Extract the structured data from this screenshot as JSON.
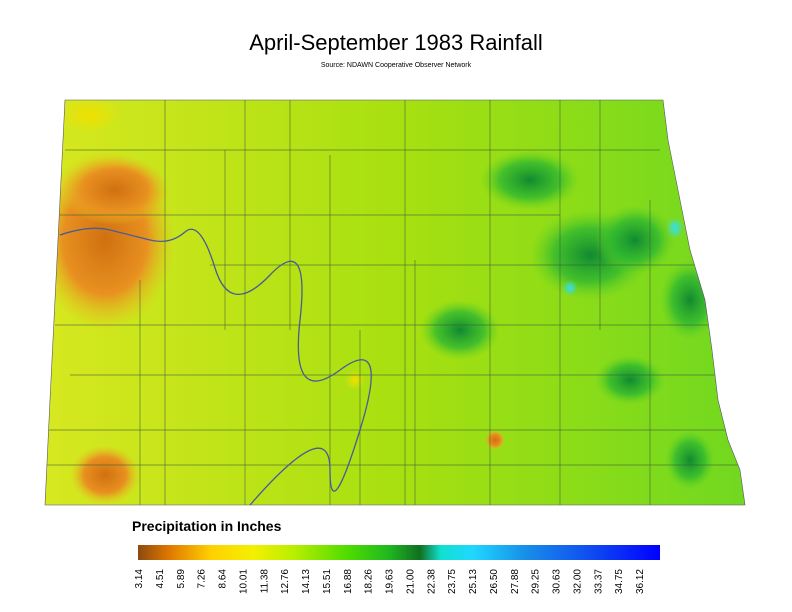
{
  "header": {
    "title": "April-September 1983 Rainfall",
    "source": "Source: NDAWN Cooperative Observer Network"
  },
  "legend": {
    "title": "Precipitation in Inches",
    "labels": [
      "3.14",
      "4.51",
      "5.89",
      "7.26",
      "8.64",
      "10.01",
      "11.38",
      "12.76",
      "14.13",
      "15.51",
      "16.88",
      "18.26",
      "19.63",
      "21.00",
      "22.38",
      "23.75",
      "25.13",
      "26.50",
      "27.88",
      "29.25",
      "30.63",
      "32.00",
      "33.37",
      "34.75",
      "36.12"
    ]
  }
}
